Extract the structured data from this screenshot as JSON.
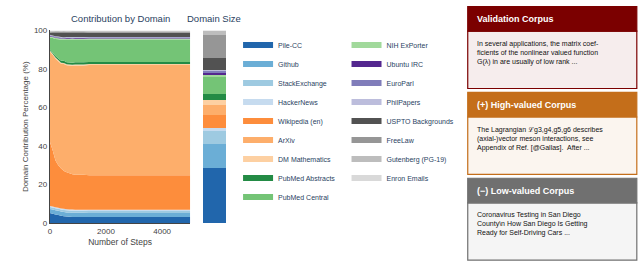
{
  "chart_data": [
    {
      "type": "area",
      "stacked": true,
      "title": "Contribution by Domain",
      "xlabel": "Number of Steps",
      "ylabel": "Domain Contribution Percentage (%)",
      "x": [
        0,
        100,
        200,
        300,
        400,
        500,
        600,
        700,
        800,
        900,
        1000,
        1200,
        1400,
        1600,
        1800,
        2000,
        2200,
        2400,
        2600,
        2800,
        3000,
        3500,
        4000,
        4500,
        5000
      ],
      "xlim": [
        0,
        5000
      ],
      "xticks": [
        0,
        2000,
        4000
      ],
      "ylim": [
        0,
        100
      ],
      "yticks": [
        0,
        20,
        40,
        60,
        80,
        100
      ],
      "grid": false,
      "legend": "right",
      "series": [
        {
          "name": "Pile-CC",
          "color": "#2166ac",
          "values": [
            5.21,
            4.85,
            4.41,
            4.19,
            3.81,
            3.59,
            3.42,
            3.33,
            3.24,
            3.21,
            3.21,
            3.21,
            3.175,
            3.175,
            3.175,
            3.175,
            3.175,
            3.175,
            3.175,
            3.175,
            3.175,
            3.175,
            3.175,
            3.175,
            3.175
          ]
        },
        {
          "name": "Github",
          "color": "#6baed6",
          "values": [
            2.08,
            2.16,
            2.21,
            2.2,
            2.18,
            2.18,
            2.13,
            2.15,
            2.16,
            2.14,
            2.14,
            2.14,
            2.116,
            2.116,
            2.116,
            2.116,
            2.116,
            2.116,
            2.116,
            2.116,
            2.116,
            2.116,
            2.116,
            2.116,
            2.116
          ]
        },
        {
          "name": "StackExchange",
          "color": "#9ecae1",
          "values": [
            1.04,
            1.08,
            1.1,
            1.1,
            1.09,
            1.09,
            1.07,
            1.07,
            1.08,
            1.07,
            1.07,
            1.07,
            1.058,
            1.058,
            1.058,
            1.058,
            1.058,
            1.058,
            1.058,
            1.058,
            1.058,
            1.058,
            1.058,
            1.058,
            1.058
          ]
        },
        {
          "name": "HackerNews",
          "color": "#c6dbef",
          "values": [
            0.52,
            0.54,
            0.55,
            0.55,
            0.54,
            0.54,
            0.53,
            0.54,
            0.54,
            0.53,
            0.53,
            0.53,
            0.529,
            0.529,
            0.529,
            0.529,
            0.529,
            0.529,
            0.529,
            0.529,
            0.529,
            0.529,
            0.529,
            0.529,
            0.529
          ]
        },
        {
          "name": "Wikipedia (en)",
          "color": "#fd8d3c",
          "values": [
            33.33,
            29.13,
            24.26,
            22.03,
            20.67,
            19.61,
            19.21,
            18.8,
            18.38,
            18.18,
            18.18,
            18.18,
            17.989,
            17.989,
            17.989,
            17.989,
            17.989,
            17.989,
            17.989,
            17.989,
            17.989,
            17.989,
            17.989,
            17.989,
            17.989
          ]
        },
        {
          "name": "ArXiv",
          "color": "#fdae6b",
          "values": [
            46.88,
            49.62,
            52.92,
            53.96,
            54.41,
            55.56,
            55.5,
            55.85,
            56.22,
            56.68,
            56.68,
            56.68,
            57.143,
            57.143,
            57.143,
            57.143,
            57.143,
            57.143,
            57.143,
            57.143,
            57.143,
            57.143,
            57.143,
            57.143,
            57.143
          ]
        },
        {
          "name": "DM Mathematics",
          "color": "#fdd0a2",
          "values": [
            0.52,
            0.54,
            0.55,
            0.55,
            0.54,
            0.54,
            0.53,
            0.54,
            0.54,
            0.53,
            0.53,
            0.53,
            0.529,
            0.529,
            0.529,
            0.529,
            0.529,
            0.529,
            0.529,
            0.529,
            0.529,
            0.529,
            0.529,
            0.529,
            0.529
          ]
        },
        {
          "name": "PubMed Abstracts",
          "color": "#238b45",
          "values": [
            0.52,
            0.54,
            0.77,
            0.88,
            0.98,
            1.09,
            1.07,
            1.07,
            1.08,
            1.07,
            1.07,
            1.07,
            1.058,
            1.058,
            1.058,
            1.058,
            1.058,
            1.058,
            1.058,
            1.058,
            1.058,
            1.058,
            1.058,
            1.058,
            1.058
          ]
        },
        {
          "name": "PubMed Central",
          "color": "#74c476",
          "values": [
            6.25,
            7.55,
            8.82,
            9.91,
            10.88,
            10.89,
            11.74,
            11.82,
            11.89,
            11.76,
            11.76,
            11.76,
            11.64,
            11.64,
            11.64,
            11.64,
            11.64,
            11.64,
            11.64,
            11.64,
            11.64,
            11.64,
            11.64,
            11.64,
            11.64
          ]
        },
        {
          "name": "NIH ExPorter",
          "color": "#a1d99b",
          "values": [
            0.52,
            0.54,
            0.55,
            0.55,
            0.54,
            0.54,
            0.53,
            0.54,
            0.54,
            0.53,
            0.53,
            0.53,
            0.529,
            0.529,
            0.529,
            0.529,
            0.529,
            0.529,
            0.529,
            0.529,
            0.529,
            0.529,
            0.529,
            0.529,
            0.529
          ]
        },
        {
          "name": "Ubuntu IRC",
          "color": "#54278f",
          "values": [
            0.31,
            0.32,
            0.33,
            0.33,
            0.33,
            0.33,
            0.32,
            0.32,
            0.32,
            0.32,
            0.32,
            0.32,
            0.317,
            0.317,
            0.317,
            0.317,
            0.317,
            0.317,
            0.317,
            0.317,
            0.317,
            0.317,
            0.317,
            0.317,
            0.317
          ]
        },
        {
          "name": "EuroParl",
          "color": "#807dba",
          "values": [
            0.31,
            0.32,
            0.33,
            0.33,
            0.33,
            0.33,
            0.32,
            0.32,
            0.32,
            0.32,
            0.32,
            0.32,
            0.317,
            0.317,
            0.317,
            0.317,
            0.317,
            0.317,
            0.317,
            0.317,
            0.317,
            0.317,
            0.317,
            0.317,
            0.317
          ]
        },
        {
          "name": "PhilPapers",
          "color": "#bcbddc",
          "values": [
            0.21,
            0.22,
            0.22,
            0.22,
            0.22,
            0.22,
            0.21,
            0.21,
            0.22,
            0.21,
            0.21,
            0.21,
            0.212,
            0.212,
            0.212,
            0.212,
            0.212,
            0.212,
            0.212,
            0.212,
            0.212,
            0.212,
            0.212,
            0.212,
            0.212
          ]
        },
        {
          "name": "USPTO Backgrounds",
          "color": "#525252",
          "values": [
            1.04,
            1.29,
            1.65,
            1.87,
            2.18,
            2.18,
            2.13,
            2.15,
            2.16,
            2.14,
            2.14,
            2.14,
            2.116,
            2.116,
            2.116,
            2.116,
            2.116,
            2.116,
            2.116,
            2.116,
            2.116,
            2.116,
            2.116,
            2.116,
            2.116
          ]
        },
        {
          "name": "FreeLaw",
          "color": "#969696",
          "values": [
            0.52,
            0.54,
            0.55,
            0.55,
            0.54,
            0.54,
            0.53,
            0.54,
            0.54,
            0.53,
            0.53,
            0.53,
            0.529,
            0.529,
            0.529,
            0.529,
            0.529,
            0.529,
            0.529,
            0.529,
            0.529,
            0.529,
            0.529,
            0.529,
            0.529
          ]
        },
        {
          "name": "Gutenberg (PG-19)",
          "color": "#bdbdbd",
          "values": [
            0.52,
            0.54,
            0.55,
            0.55,
            0.54,
            0.54,
            0.53,
            0.54,
            0.54,
            0.53,
            0.53,
            0.53,
            0.529,
            0.529,
            0.529,
            0.529,
            0.529,
            0.529,
            0.529,
            0.529,
            0.529,
            0.529,
            0.529,
            0.529,
            0.529
          ]
        },
        {
          "name": "Enron Emails",
          "color": "#d9d9d9",
          "values": [
            0.21,
            0.22,
            0.22,
            0.22,
            0.22,
            0.22,
            0.21,
            0.21,
            0.22,
            0.21,
            0.21,
            0.21,
            0.212,
            0.212,
            0.212,
            0.212,
            0.212,
            0.212,
            0.212,
            0.212,
            0.212,
            0.212,
            0.212,
            0.212,
            0.212
          ]
        }
      ],
      "annotations": [
        {
          "title": "Validation Corpus",
          "text": "In several applications, the matrix coef-\nficients of the nonlinear valued function\nG(λ) in are usually of low rank ...",
          "color": "#7b0000"
        },
        {
          "title": "(+) High-valued Corpus",
          "text": "The Lagrangian ℒg3,g4,g5,g6 describes\n(axial-)vector meson interactions, see\nAppendix of Ref. [@Gallas].  After ...",
          "color": "#c46e1a"
        },
        {
          "title": "(−) Low-valued Corpus",
          "text": "Coronavirus Testing in San Diego\nCounty\\n How San Diego Is Getting\nReady for Self-Driving Cars ...",
          "color": "#707070"
        }
      ]
    },
    {
      "type": "bar",
      "stacked": true,
      "title": "Domain Size",
      "ylim": [
        0,
        100
      ],
      "tick_labels": false,
      "grid": false,
      "series": [
        {
          "name": "Pile-CC",
          "color": "#2166ac",
          "values": [
            28.375
          ]
        },
        {
          "name": "Github",
          "color": "#6baed6",
          "values": [
            12.875
          ]
        },
        {
          "name": "StackExchange",
          "color": "#9ecae1",
          "values": [
            6.375
          ]
        },
        {
          "name": "HackerNews",
          "color": "#c6dbef",
          "values": [
            1.625
          ]
        },
        {
          "name": "Wikipedia (en)",
          "color": "#fd8d3c",
          "values": [
            6.625
          ]
        },
        {
          "name": "ArXiv",
          "color": "#fdae6b",
          "values": [
            5.25
          ]
        },
        {
          "name": "DM Mathematics",
          "color": "#fdd0a2",
          "values": [
            2.625
          ]
        },
        {
          "name": "PubMed Abstracts",
          "color": "#238b45",
          "values": [
            3.375
          ]
        },
        {
          "name": "PubMed Central",
          "color": "#74c476",
          "values": [
            8.75
          ]
        },
        {
          "name": "NIH ExPorter",
          "color": "#a1d99b",
          "values": [
            1.25
          ]
        },
        {
          "name": "Ubuntu IRC",
          "color": "#54278f",
          "values": [
            0.875
          ]
        },
        {
          "name": "EuroParl",
          "color": "#807dba",
          "values": [
            0.875
          ]
        },
        {
          "name": "PhilPapers",
          "color": "#bcbddc",
          "values": [
            0.5
          ]
        },
        {
          "name": "USPTO Backgrounds",
          "color": "#525252",
          "values": [
            6.5
          ]
        },
        {
          "name": "FreeLaw",
          "color": "#969696",
          "values": [
            11.5
          ]
        },
        {
          "name": "Gutenberg (PG-19)",
          "color": "#bdbdbd",
          "values": [
            2.25
          ]
        },
        {
          "name": "Enron Emails",
          "color": "#d9d9d9",
          "values": [
            0.375
          ]
        }
      ]
    }
  ]
}
